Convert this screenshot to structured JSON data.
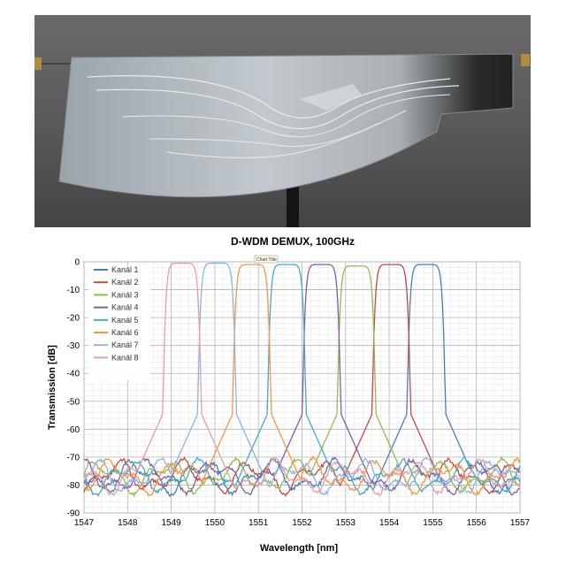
{
  "photo": {
    "kind": "photograph",
    "subject": "AWG D-WDM demultiplexer optical chip on a mount"
  },
  "chart_data": {
    "type": "line",
    "title": "D-WDM DEMUX, 100GHz",
    "tooltip": "Chart Title",
    "xlabel": "Wavelength [nm]",
    "ylabel": "Transmission [dB]",
    "xlim": [
      1547,
      1557
    ],
    "ylim": [
      -90,
      0
    ],
    "xticks": [
      "1547",
      "1548",
      "1549",
      "1550",
      "1551",
      "1552",
      "1553",
      "1554",
      "1555",
      "1556",
      "1557"
    ],
    "yticks": [
      "0",
      "-10",
      "-20",
      "-30",
      "-40",
      "-50",
      "-60",
      "-70",
      "-80",
      "-90"
    ],
    "grid": true,
    "legend_position": "top-left",
    "series": [
      {
        "name": "Kanál 1",
        "color": "#4a7ebb",
        "center": 1554.85,
        "peak": -1
      },
      {
        "name": "Kanál 2",
        "color": "#be4b48",
        "center": 1554.05,
        "peak": -1
      },
      {
        "name": "Kanál 3",
        "color": "#98b954",
        "center": 1553.25,
        "peak": -1.5
      },
      {
        "name": "Kanál 4",
        "color": "#7d60a0",
        "center": 1552.45,
        "peak": -1
      },
      {
        "name": "Kanál 5",
        "color": "#46aac5",
        "center": 1551.65,
        "peak": -1
      },
      {
        "name": "Kanál 6",
        "color": "#f79646",
        "center": 1550.85,
        "peak": -1
      },
      {
        "name": "Kanál 7",
        "color": "#8eb4e3",
        "center": 1550.05,
        "peak": -0.5
      },
      {
        "name": "Kanál 8",
        "color": "#e6a09e",
        "center": 1549.25,
        "peak": -0.5
      }
    ]
  }
}
